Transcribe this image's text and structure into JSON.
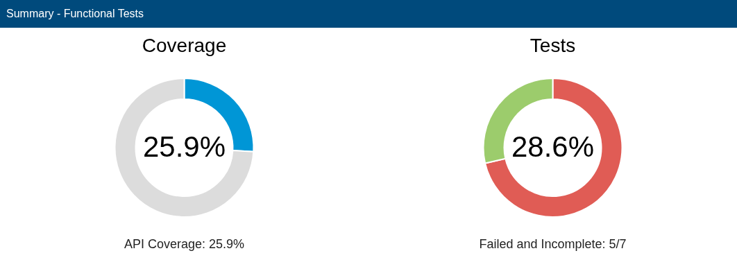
{
  "chart_data": [
    {
      "type": "donut",
      "title": "Coverage",
      "subtitle": "25.9%",
      "categories": [
        null,
        null
      ],
      "values": [
        25.9,
        74.1
      ],
      "colors": [
        "#0096d6",
        "#dcdcdc"
      ],
      "annotations": [
        "Summary - Functional Tests",
        "API Coverage: 25.9%"
      ]
    },
    {
      "type": "donut",
      "title": "Tests",
      "subtitle": "28.6%",
      "categories": [
        null,
        null
      ],
      "values": [
        71.4,
        28.6
      ],
      "colors": [
        "#e05c55",
        "#9ccc6c"
      ],
      "annotations": [
        "Failed and Incomplete: 5/7"
      ]
    }
  ]
}
